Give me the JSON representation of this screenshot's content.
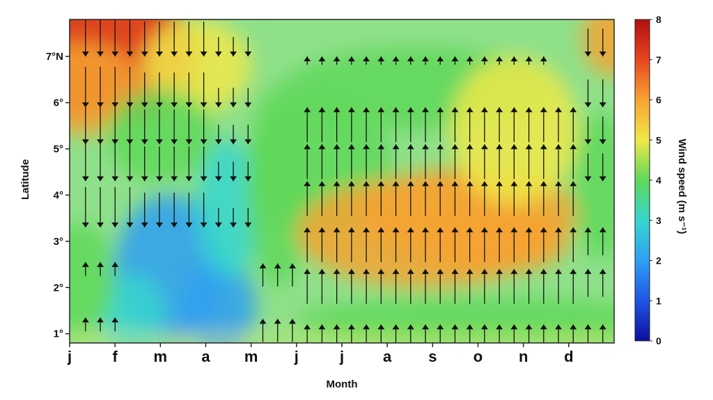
{
  "chart_data": {
    "type": "heatmap",
    "title": "",
    "xlabel": "Month",
    "ylabel": "Latitude",
    "x_tick_labels": [
      "j",
      "f",
      "m",
      "a",
      "m",
      "j",
      "j",
      "a",
      "s",
      "o",
      "n",
      "d"
    ],
    "y_tick_labels": [
      "1°",
      "2°",
      "3°",
      "4°",
      "5°",
      "6°",
      "7°N"
    ],
    "y_ticks": [
      1,
      2,
      3,
      4,
      5,
      6,
      7
    ],
    "xlim": [
      0,
      12
    ],
    "ylim": [
      0.8,
      7.8
    ],
    "colorbar": {
      "label": "Wind speed  (m s⁻¹)",
      "range": [
        0,
        8
      ],
      "tick_labels": [
        "0",
        "1",
        "2",
        "3",
        "4",
        "5",
        "6",
        "7",
        "8"
      ],
      "colors": [
        "#0b0f9c",
        "#1f55e6",
        "#2f9ff2",
        "#36d6cf",
        "#5fd85a",
        "#f0e94a",
        "#f6a332",
        "#e8461f",
        "#b01010"
      ]
    },
    "field_description": "background shading = wind speed magnitude; arrows = meridional wind direction",
    "arrows_summary": {
      "jan_apr_north_of_2N": "southward",
      "may_dec": "northward"
    }
  }
}
